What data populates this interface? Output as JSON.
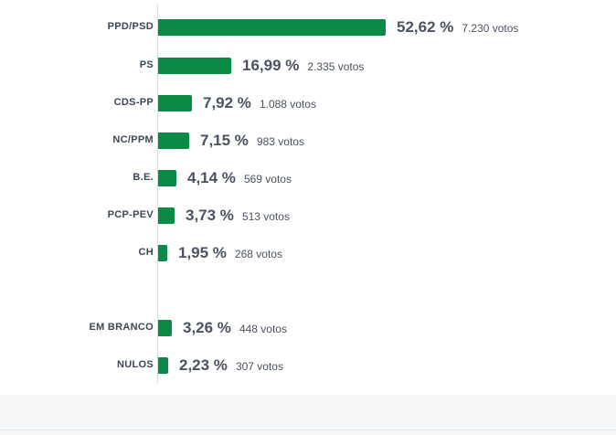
{
  "colors": {
    "bar": "#0a8a44",
    "text": "#4a5361",
    "label": "#3d4755"
  },
  "chart_data": {
    "type": "bar",
    "orientation": "horizontal",
    "categories": [
      "PPD/PSD",
      "PS",
      "CDS-PP",
      "NC/PPM",
      "B.E.",
      "PCP-PEV",
      "CH",
      "EM BRANCO",
      "NULOS"
    ],
    "values": [
      52.62,
      16.99,
      7.92,
      7.15,
      4.14,
      3.73,
      1.95,
      3.26,
      2.23
    ],
    "pct_labels": [
      "52,62 %",
      "16,99 %",
      "7,92 %",
      "7,15 %",
      "4,14 %",
      "3,73 %",
      "1,95 %",
      "3,26 %",
      "2,23 %"
    ],
    "votes": [
      7230,
      2335,
      1088,
      983,
      569,
      513,
      268,
      448,
      307
    ],
    "vote_labels": [
      "7.230 votos",
      "2.335 votos",
      "1.088 votos",
      "983 votos",
      "569 votos",
      "513 votos",
      "268 votos",
      "448 votos",
      "307 votos"
    ],
    "xlim": [
      0,
      52.62
    ],
    "grid": false,
    "legend": "none"
  }
}
